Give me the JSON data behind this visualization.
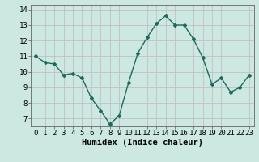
{
  "x": [
    0,
    1,
    2,
    3,
    4,
    5,
    6,
    7,
    8,
    9,
    10,
    11,
    12,
    13,
    14,
    15,
    16,
    17,
    18,
    19,
    20,
    21,
    22,
    23
  ],
  "y": [
    11.0,
    10.6,
    10.5,
    9.8,
    9.9,
    9.6,
    8.3,
    7.5,
    6.65,
    7.2,
    9.3,
    11.2,
    12.2,
    13.1,
    13.6,
    13.0,
    13.0,
    12.1,
    10.9,
    9.2,
    9.6,
    8.7,
    9.0,
    9.8
  ],
  "line_color": "#1a6b5e",
  "marker": "D",
  "marker_size": 2.0,
  "bg_color": "#cce8e0",
  "grid_color": "#c0b8c0",
  "xlabel": "Humidex (Indice chaleur)",
  "ylim": [
    6.5,
    14.3
  ],
  "xlim": [
    -0.5,
    23.5
  ],
  "yticks": [
    7,
    8,
    9,
    10,
    11,
    12,
    13,
    14
  ],
  "xticks": [
    0,
    1,
    2,
    3,
    4,
    5,
    6,
    7,
    8,
    9,
    10,
    11,
    12,
    13,
    14,
    15,
    16,
    17,
    18,
    19,
    20,
    21,
    22,
    23
  ],
  "tick_label_fontsize": 6.5,
  "xlabel_fontsize": 7.5,
  "line_width": 1.0
}
